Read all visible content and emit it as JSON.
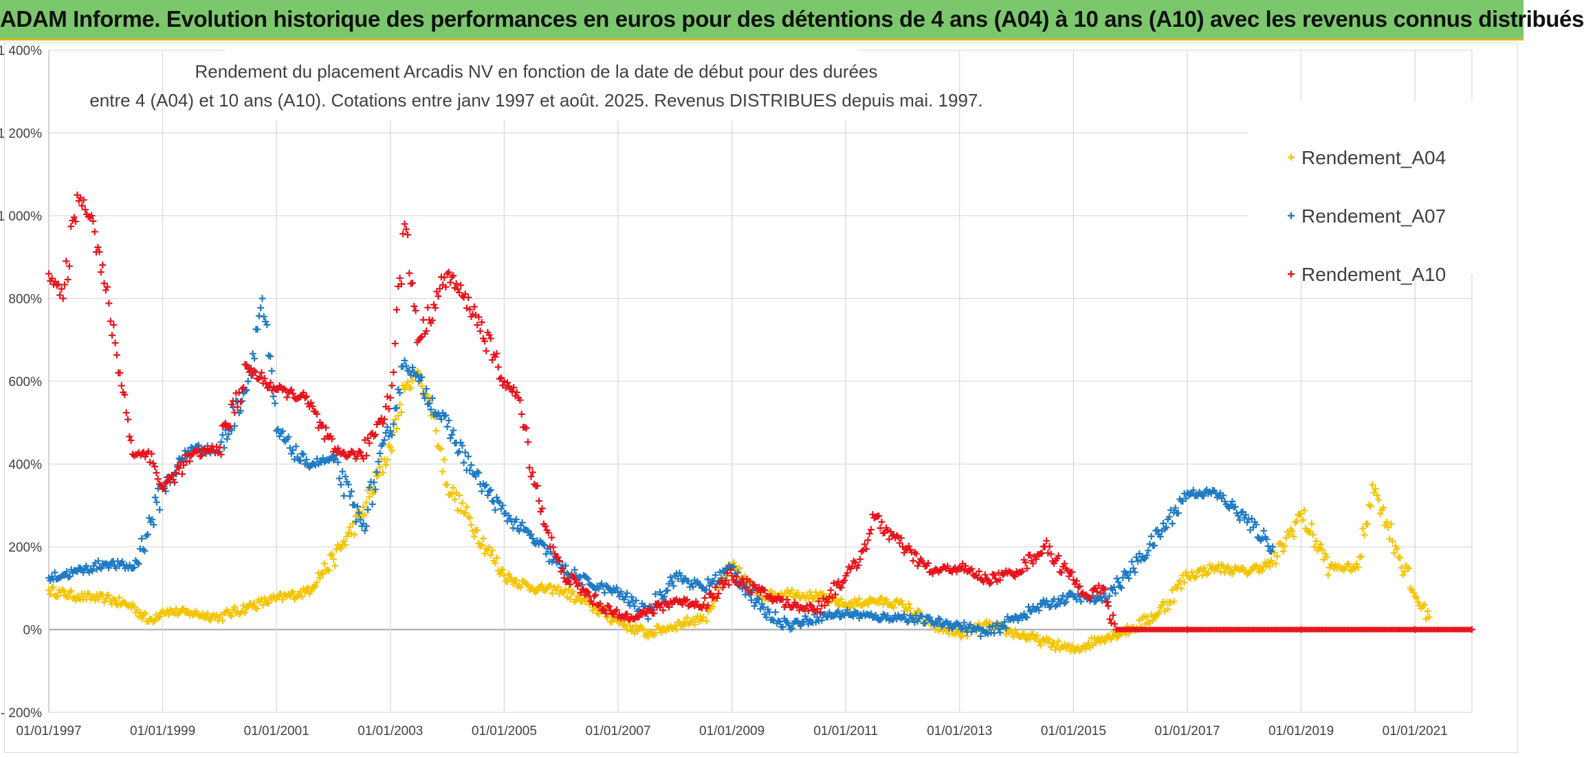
{
  "header": {
    "banner": "ADAM Informe. Evolution historique des performances en euros pour des détentions de 4 ans (A04) à 10 ans (A10) avec les revenus connus distribués"
  },
  "chart_data": {
    "type": "scatter",
    "title_line1": "Rendement du placement Arcadis NV en fonction de la date de début pour des durées",
    "title_line2": "entre 4 (A04) et 10 ans (A10). Cotations entre janv 1997 et août. 2025. Revenus DISTRIBUES depuis mai. 1997.",
    "xlabel": "",
    "ylabel": "",
    "x_ticks": [
      "01/01/1997",
      "01/01/1999",
      "01/01/2001",
      "01/01/2003",
      "01/01/2005",
      "01/01/2007",
      "01/01/2009",
      "01/01/2011",
      "01/01/2013",
      "01/01/2015",
      "01/01/2017",
      "01/01/2019",
      "01/01/2021"
    ],
    "y_ticks": [
      "1 400%",
      "1 200%",
      "1 000%",
      "800%",
      "600%",
      "400%",
      "200%",
      "0%",
      "- 200%"
    ],
    "xlim": [
      "01/01/1997",
      "01/01/2022"
    ],
    "ylim": [
      -200,
      1400
    ],
    "grid": true,
    "legend_position": "right",
    "marker": "+",
    "series": [
      {
        "name": "Rendement_A04",
        "color": "#f5c400",
        "points": [
          [
            "01/01/1997",
            95
          ],
          [
            "01/07/1997",
            80
          ],
          [
            "01/01/1998",
            75
          ],
          [
            "01/07/1998",
            55
          ],
          [
            "01/10/1998",
            20
          ],
          [
            "01/01/1999",
            45
          ],
          [
            "01/07/1999",
            40
          ],
          [
            "01/01/2000",
            30
          ],
          [
            "01/07/2000",
            55
          ],
          [
            "01/01/2001",
            75
          ],
          [
            "01/07/2001",
            90
          ],
          [
            "01/01/2002",
            170
          ],
          [
            "01/07/2002",
            280
          ],
          [
            "01/01/2003",
            440
          ],
          [
            "01/04/2003",
            580
          ],
          [
            "01/07/2003",
            620
          ],
          [
            "01/10/2003",
            520
          ],
          [
            "01/01/2004",
            350
          ],
          [
            "01/07/2004",
            240
          ],
          [
            "01/01/2005",
            130
          ],
          [
            "01/07/2005",
            100
          ],
          [
            "01/01/2006",
            95
          ],
          [
            "01/07/2006",
            60
          ],
          [
            "01/01/2007",
            20
          ],
          [
            "01/07/2007",
            -10
          ],
          [
            "01/01/2008",
            10
          ],
          [
            "01/07/2008",
            30
          ],
          [
            "01/01/2009",
            150
          ],
          [
            "01/07/2009",
            80
          ],
          [
            "01/01/2010",
            90
          ],
          [
            "01/07/2010",
            80
          ],
          [
            "01/01/2011",
            60
          ],
          [
            "01/07/2011",
            70
          ],
          [
            "01/01/2012",
            60
          ],
          [
            "01/07/2012",
            10
          ],
          [
            "01/01/2013",
            -10
          ],
          [
            "01/07/2013",
            10
          ],
          [
            "01/01/2014",
            -10
          ],
          [
            "01/07/2014",
            -30
          ],
          [
            "01/01/2015",
            -50
          ],
          [
            "01/07/2015",
            -20
          ],
          [
            "01/01/2016",
            0
          ],
          [
            "01/07/2016",
            40
          ],
          [
            "01/01/2017",
            130
          ],
          [
            "01/07/2017",
            150
          ],
          [
            "01/01/2018",
            140
          ],
          [
            "01/07/2018",
            160
          ],
          [
            "01/01/2019",
            280
          ],
          [
            "01/07/2019",
            150
          ],
          [
            "01/01/2020",
            150
          ],
          [
            "01/04/2020",
            350
          ],
          [
            "01/07/2020",
            260
          ],
          [
            "01/01/2021",
            80
          ],
          [
            "01/04/2021",
            30
          ]
        ]
      },
      {
        "name": "Rendement_A07",
        "color": "#1f7ac4",
        "points": [
          [
            "01/01/1997",
            125
          ],
          [
            "01/07/1997",
            140
          ],
          [
            "01/01/1998",
            160
          ],
          [
            "01/07/1998",
            150
          ],
          [
            "01/01/1999",
            340
          ],
          [
            "01/07/1999",
            440
          ],
          [
            "01/01/2000",
            430
          ],
          [
            "01/07/2000",
            600
          ],
          [
            "01/10/2000",
            800
          ],
          [
            "01/01/2001",
            480
          ],
          [
            "01/07/2001",
            400
          ],
          [
            "01/01/2002",
            410
          ],
          [
            "01/07/2002",
            250
          ],
          [
            "01/01/2003",
            480
          ],
          [
            "01/04/2003",
            650
          ],
          [
            "01/07/2003",
            600
          ],
          [
            "01/01/2004",
            490
          ],
          [
            "01/07/2004",
            370
          ],
          [
            "01/01/2005",
            280
          ],
          [
            "01/07/2005",
            220
          ],
          [
            "01/01/2006",
            150
          ],
          [
            "01/07/2006",
            110
          ],
          [
            "01/01/2007",
            90
          ],
          [
            "01/07/2007",
            40
          ],
          [
            "01/01/2008",
            130
          ],
          [
            "01/07/2008",
            100
          ],
          [
            "01/01/2009",
            150
          ],
          [
            "01/07/2009",
            50
          ],
          [
            "01/01/2010",
            10
          ],
          [
            "01/07/2010",
            30
          ],
          [
            "01/01/2011",
            40
          ],
          [
            "01/07/2011",
            30
          ],
          [
            "01/01/2012",
            30
          ],
          [
            "01/07/2012",
            20
          ],
          [
            "01/01/2013",
            10
          ],
          [
            "01/07/2013",
            -10
          ],
          [
            "01/01/2014",
            30
          ],
          [
            "01/07/2014",
            60
          ],
          [
            "01/01/2015",
            80
          ],
          [
            "01/07/2015",
            70
          ],
          [
            "01/01/2016",
            140
          ],
          [
            "01/07/2016",
            230
          ],
          [
            "01/01/2017",
            330
          ],
          [
            "01/07/2017",
            330
          ],
          [
            "01/01/2018",
            270
          ],
          [
            "01/07/2018",
            200
          ]
        ]
      },
      {
        "name": "Rendement_A10",
        "color": "#e8131b",
        "points": [
          [
            "01/01/1997",
            860
          ],
          [
            "01/04/1997",
            800
          ],
          [
            "01/07/1997",
            1050
          ],
          [
            "01/10/1997",
            1000
          ],
          [
            "01/01/1998",
            820
          ],
          [
            "01/04/1998",
            620
          ],
          [
            "01/07/1998",
            420
          ],
          [
            "01/10/1998",
            430
          ],
          [
            "01/01/1999",
            340
          ],
          [
            "01/07/1999",
            420
          ],
          [
            "01/01/2000",
            440
          ],
          [
            "01/07/2000",
            630
          ],
          [
            "01/01/2001",
            580
          ],
          [
            "01/07/2001",
            560
          ],
          [
            "01/01/2002",
            430
          ],
          [
            "01/07/2002",
            420
          ],
          [
            "01/01/2003",
            560
          ],
          [
            "01/04/2003",
            980
          ],
          [
            "01/07/2003",
            700
          ],
          [
            "01/01/2004",
            860
          ],
          [
            "01/07/2004",
            760
          ],
          [
            "01/01/2005",
            600
          ],
          [
            "01/04/2005",
            560
          ],
          [
            "01/07/2005",
            380
          ],
          [
            "01/10/2005",
            240
          ],
          [
            "01/01/2006",
            140
          ],
          [
            "01/07/2006",
            80
          ],
          [
            "01/01/2007",
            30
          ],
          [
            "01/07/2007",
            40
          ],
          [
            "01/01/2008",
            70
          ],
          [
            "01/07/2008",
            60
          ],
          [
            "01/01/2009",
            130
          ],
          [
            "01/07/2009",
            90
          ],
          [
            "01/01/2010",
            60
          ],
          [
            "01/07/2010",
            50
          ],
          [
            "01/01/2011",
            130
          ],
          [
            "01/04/2011",
            170
          ],
          [
            "01/07/2011",
            270
          ],
          [
            "01/01/2012",
            200
          ],
          [
            "01/07/2012",
            140
          ],
          [
            "01/01/2013",
            150
          ],
          [
            "01/07/2013",
            120
          ],
          [
            "01/01/2014",
            140
          ],
          [
            "01/07/2014",
            200
          ],
          [
            "01/01/2015",
            120
          ],
          [
            "01/04/2015",
            80
          ],
          [
            "01/07/2015",
            100
          ],
          [
            "01/10/2015",
            0
          ],
          [
            "01/01/2017",
            0
          ],
          [
            "01/01/2019",
            0
          ],
          [
            "01/01/2021",
            0
          ],
          [
            "01/01/2022",
            0
          ]
        ]
      }
    ]
  }
}
